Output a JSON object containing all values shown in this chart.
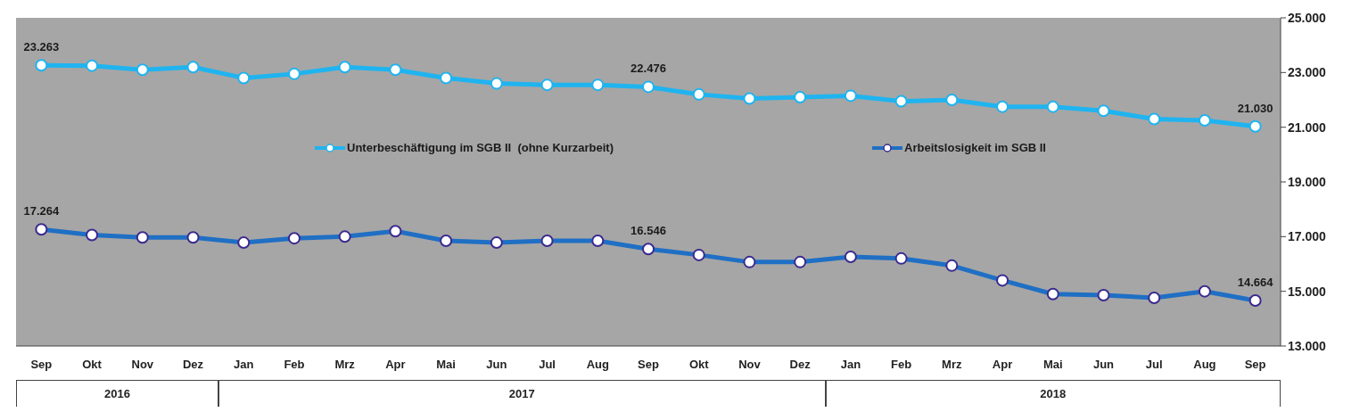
{
  "chart_data": {
    "type": "line",
    "categories": [
      "Sep",
      "Okt",
      "Nov",
      "Dez",
      "Jan",
      "Feb",
      "Mrz",
      "Apr",
      "Mai",
      "Jun",
      "Jul",
      "Aug",
      "Sep",
      "Okt",
      "Nov",
      "Dez",
      "Jan",
      "Feb",
      "Mrz",
      "Apr",
      "Mai",
      "Jun",
      "Jul",
      "Aug",
      "Sep"
    ],
    "series": [
      {
        "name": "Unterbeschäftigung im SGB II  (ohne Kurzarbeit)",
        "color": "#1fb4f0",
        "values": [
          23263,
          23250,
          23100,
          23200,
          22800,
          22950,
          23200,
          23100,
          22800,
          22600,
          22550,
          22550,
          22476,
          22200,
          22050,
          22100,
          22150,
          21950,
          22000,
          21750,
          21750,
          21600,
          21300,
          21250,
          21030
        ],
        "value_labels": [
          "23.263",
          null,
          null,
          null,
          null,
          null,
          null,
          null,
          null,
          null,
          null,
          null,
          "22.476",
          null,
          null,
          null,
          null,
          null,
          null,
          null,
          null,
          null,
          null,
          null,
          "21.030"
        ]
      },
      {
        "name": "Arbeitslosigkeit im SGB II",
        "color": "#1f6fc4",
        "values": [
          17264,
          17060,
          16970,
          16970,
          16780,
          16940,
          17000,
          17200,
          16850,
          16780,
          16850,
          16850,
          16546,
          16330,
          16070,
          16070,
          16260,
          16200,
          15940,
          15400,
          14900,
          14860,
          14760,
          15000,
          14664
        ],
        "value_labels": [
          "17.264",
          null,
          null,
          null,
          null,
          null,
          null,
          null,
          null,
          null,
          null,
          null,
          "16.546",
          null,
          null,
          null,
          null,
          null,
          null,
          null,
          null,
          null,
          null,
          null,
          "14.664"
        ]
      }
    ],
    "ylim": [
      13000,
      25000
    ],
    "yticks": [
      {
        "value": 13000,
        "label": "13.000"
      },
      {
        "value": 15000,
        "label": "15.000"
      },
      {
        "value": 17000,
        "label": "17.000"
      },
      {
        "value": 19000,
        "label": "19.000"
      },
      {
        "value": 21000,
        "label": "21.000"
      },
      {
        "value": 23000,
        "label": "23.000"
      },
      {
        "value": 25000,
        "label": "25.000"
      }
    ],
    "annotations": [
      "2016",
      "2017",
      "2018"
    ],
    "grid": false,
    "legend": "top",
    "marker": "circle",
    "line_style": "solid"
  }
}
